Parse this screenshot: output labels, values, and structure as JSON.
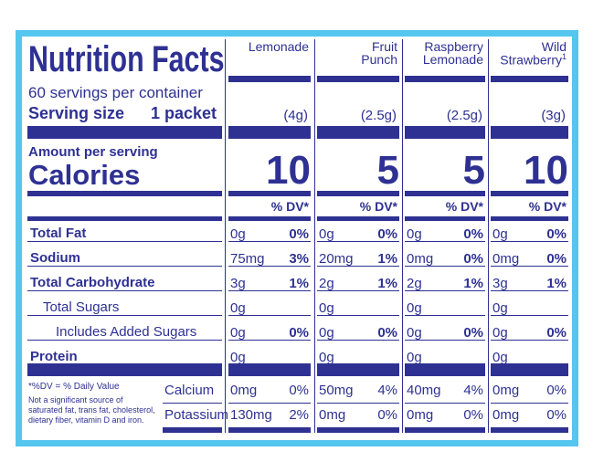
{
  "header": {
    "title": "Nutrition Facts",
    "servings": "60 servings per container",
    "serving_size_label": "Serving size",
    "serving_size": "1 packet",
    "amount_per_serving": "Amount per serving",
    "calories_label": "Calories",
    "dv_header": "% DV*"
  },
  "nutrients": [
    "Total Fat",
    "Sodium",
    "Total Carbohydrate",
    "Total Sugars",
    "Includes Added Sugars",
    "Protein"
  ],
  "minerals": [
    "Calcium",
    "Potassium"
  ],
  "products": [
    {
      "name_lines": [
        "Lemonade"
      ],
      "serving": "(4g)",
      "calories": 10,
      "nutrients": [
        [
          "0g",
          "0%"
        ],
        [
          "75mg",
          "3%"
        ],
        [
          "3g",
          "1%"
        ],
        [
          "0g"
        ],
        [
          "0g",
          "0%"
        ],
        [
          "0g"
        ]
      ],
      "minerals": [
        [
          "0mg",
          "0%"
        ],
        [
          "130mg",
          "2%"
        ]
      ]
    },
    {
      "name_lines": [
        "Fruit",
        "Punch"
      ],
      "serving": "(2.5g)",
      "calories": 5,
      "nutrients": [
        [
          "0g",
          "0%"
        ],
        [
          "20mg",
          "1%"
        ],
        [
          "2g",
          "1%"
        ],
        [
          "0g"
        ],
        [
          "0g",
          "0%"
        ],
        [
          "0g"
        ]
      ],
      "minerals": [
        [
          "50mg",
          "4%"
        ],
        [
          "0mg",
          "0%"
        ]
      ]
    },
    {
      "name_lines": [
        "Raspberry",
        "Lemonade"
      ],
      "serving": "(2.5g)",
      "calories": 5,
      "nutrients": [
        [
          "0g",
          "0%"
        ],
        [
          "0mg",
          "0%"
        ],
        [
          "2g",
          "1%"
        ],
        [
          "0g"
        ],
        [
          "0g",
          "0%"
        ],
        [
          "0g"
        ]
      ],
      "minerals": [
        [
          "40mg",
          "4%"
        ],
        [
          "0mg",
          "0%"
        ]
      ]
    },
    {
      "name_lines": [
        "Wild",
        "Strawberry"
      ],
      "marker": "1",
      "serving": "(3g)",
      "calories": 10,
      "nutrients": [
        [
          "0g",
          "0%"
        ],
        [
          "0mg",
          "0%"
        ],
        [
          "3g",
          "1%"
        ],
        [
          "0g"
        ],
        [
          "0g",
          "0%"
        ],
        [
          "0g"
        ]
      ],
      "minerals": [
        [
          "0mg",
          "0%"
        ],
        [
          "0mg",
          "0%"
        ]
      ]
    }
  ],
  "footnote": {
    "dv": "*%DV = % Daily Value",
    "note": "Not a significant source of saturated fat, trans fat, cholesterol, dietary fiber, vitamin D and iron."
  }
}
